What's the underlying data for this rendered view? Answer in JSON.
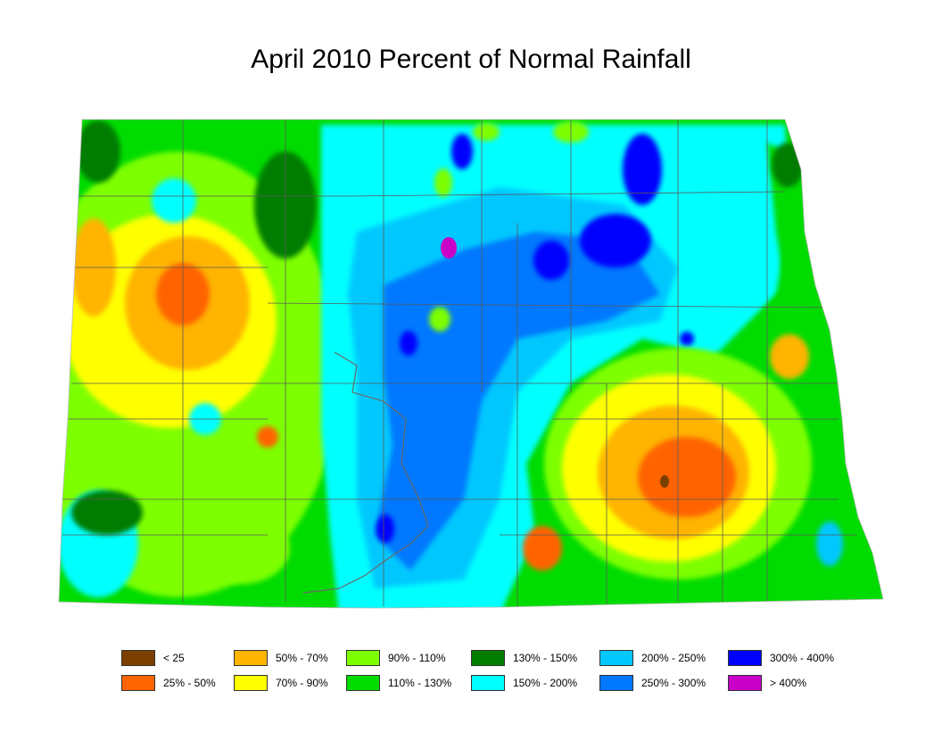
{
  "title": "April 2010 Percent of Normal Rainfall",
  "legend": [
    {
      "label": "< 25",
      "color": "#7b3f00"
    },
    {
      "label": "25% - 50%",
      "color": "#ff6400"
    },
    {
      "label": "50% - 70%",
      "color": "#ffb400"
    },
    {
      "label": "70% - 90%",
      "color": "#ffff00"
    },
    {
      "label": "90% - 110%",
      "color": "#7dff00"
    },
    {
      "label": "110% - 130%",
      "color": "#00dc00"
    },
    {
      "label": "130% - 150%",
      "color": "#007d00"
    },
    {
      "label": "150% - 200%",
      "color": "#00ffff"
    },
    {
      "label": "200% - 250%",
      "color": "#00c8ff"
    },
    {
      "label": "250% - 300%",
      "color": "#0078ff"
    },
    {
      "label": "300% - 400%",
      "color": "#0000ff"
    },
    {
      "label": "> 400%",
      "color": "#c800c8"
    }
  ]
}
